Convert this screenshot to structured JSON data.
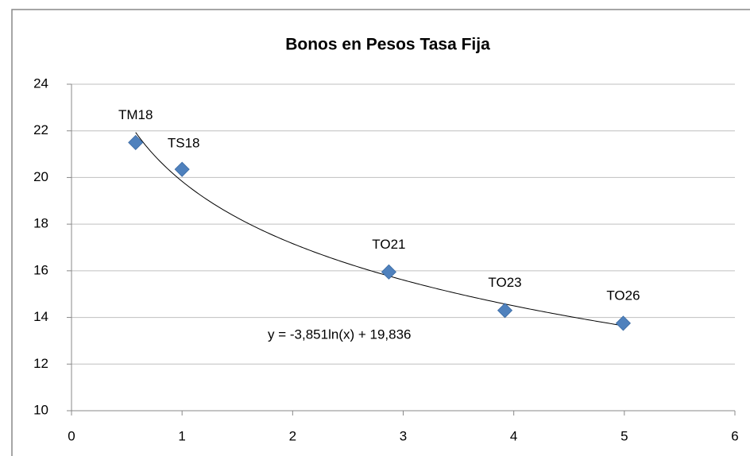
{
  "chart_data": {
    "type": "scatter",
    "title": "Bonos en Pesos Tasa Fija",
    "x": [
      0.58,
      1.0,
      2.87,
      3.92,
      4.99
    ],
    "values": [
      21.5,
      20.35,
      15.95,
      14.3,
      13.75
    ],
    "point_labels": [
      "TM18",
      "TS18",
      "TO21",
      "TO23",
      "TO26"
    ],
    "color": "#4f81bd",
    "xlim": [
      0,
      6
    ],
    "xticks": [
      0,
      1,
      2,
      3,
      4,
      5,
      6
    ],
    "ylim": [
      10,
      24
    ],
    "yticks": [
      10,
      12,
      14,
      16,
      18,
      20,
      22,
      24
    ],
    "grid": true,
    "trendline": {
      "type": "log",
      "slope": -3.851,
      "intercept": 19.836,
      "label": "y = -3,851ln(x) + 19,836"
    }
  }
}
